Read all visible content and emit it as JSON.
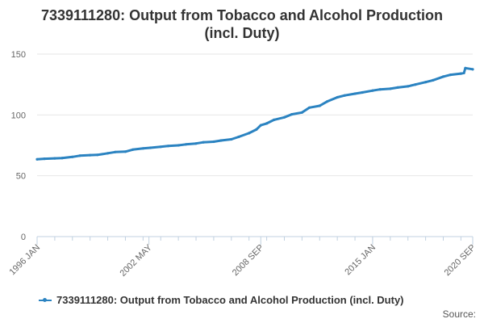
{
  "chart_data": {
    "type": "line",
    "title_line1": "7339111280: Output from Tobacco and Alcohol Production",
    "title_line2": "(incl. Duty)",
    "xlabel": "",
    "ylabel": "",
    "x_tick_labels": [
      "1996 JAN",
      "2002 MAY",
      "2008 SEP",
      "2015 JAN",
      "2020 SEP"
    ],
    "y_ticks": [
      0,
      50,
      100,
      150
    ],
    "ylim": [
      0,
      150
    ],
    "xlim": [
      "1996-01",
      "2020-09"
    ],
    "grid": true,
    "legend_position": "bottom",
    "series": [
      {
        "name": "7339111280: Output from Tobacco and Alcohol Production (incl. Duty)",
        "color": "#2b83c1",
        "points": [
          [
            "1996-01",
            63.5
          ],
          [
            "1996-06",
            64.0
          ],
          [
            "1997-01",
            64.3
          ],
          [
            "1997-06",
            64.6
          ],
          [
            "1998-01",
            65.5
          ],
          [
            "1998-06",
            66.5
          ],
          [
            "1999-01",
            67.0
          ],
          [
            "1999-06",
            67.2
          ],
          [
            "2000-01",
            68.5
          ],
          [
            "2000-06",
            69.5
          ],
          [
            "2001-01",
            69.8
          ],
          [
            "2001-06",
            71.5
          ],
          [
            "2002-01",
            72.5
          ],
          [
            "2002-06",
            73.0
          ],
          [
            "2003-01",
            73.8
          ],
          [
            "2003-06",
            74.5
          ],
          [
            "2004-01",
            75.0
          ],
          [
            "2004-06",
            75.8
          ],
          [
            "2005-01",
            76.5
          ],
          [
            "2005-06",
            77.5
          ],
          [
            "2006-01",
            78.0
          ],
          [
            "2006-06",
            79.0
          ],
          [
            "2007-01",
            80.0
          ],
          [
            "2007-06",
            82.0
          ],
          [
            "2008-01",
            85.0
          ],
          [
            "2008-06",
            88.0
          ],
          [
            "2008-09",
            91.5
          ],
          [
            "2009-01",
            93.0
          ],
          [
            "2009-06",
            96.0
          ],
          [
            "2010-01",
            98.0
          ],
          [
            "2010-06",
            100.5
          ],
          [
            "2011-01",
            102.0
          ],
          [
            "2011-06",
            106.0
          ],
          [
            "2012-01",
            107.5
          ],
          [
            "2012-06",
            111.0
          ],
          [
            "2013-01",
            114.5
          ],
          [
            "2013-06",
            116.0
          ],
          [
            "2014-01",
            117.5
          ],
          [
            "2014-06",
            118.5
          ],
          [
            "2015-01",
            120.0
          ],
          [
            "2015-06",
            121.0
          ],
          [
            "2016-01",
            121.5
          ],
          [
            "2016-06",
            122.5
          ],
          [
            "2017-01",
            123.5
          ],
          [
            "2017-06",
            125.0
          ],
          [
            "2018-01",
            127.0
          ],
          [
            "2018-06",
            128.5
          ],
          [
            "2019-01",
            131.5
          ],
          [
            "2019-06",
            133.0
          ],
          [
            "2020-01",
            134.0
          ],
          [
            "2020-03",
            134.5
          ],
          [
            "2020-04",
            138.5
          ],
          [
            "2020-09",
            137.5
          ]
        ]
      }
    ]
  },
  "source_label": "Source:"
}
